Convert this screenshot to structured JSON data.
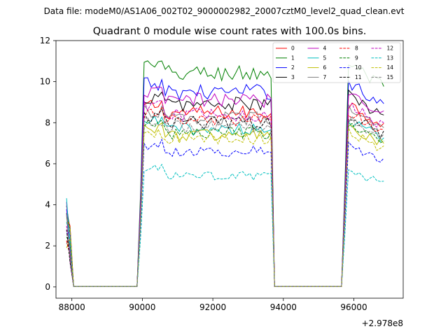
{
  "chart_data": {
    "type": "line",
    "suptitle": "Data file: modeM0/AS1A06_002T02_9000002982_20007cztM0_level2_quad_clean.evt",
    "title": "Quadrant 0 module wise count rates with 100.0s bins.",
    "xlabel": "",
    "ylabel": "",
    "x_offset_label": "+2.978e8",
    "xlim": [
      87550,
      97400
    ],
    "ylim": [
      -0.55,
      12
    ],
    "x_ticks": [
      88000,
      90000,
      92000,
      94000,
      96000
    ],
    "y_ticks": [
      0,
      2,
      4,
      6,
      8,
      10,
      12
    ],
    "grid": false,
    "legend_position": "top-right",
    "segments": [
      {
        "start": 87850,
        "end": 87950,
        "ramp_down": 88050
      },
      {
        "ramp_up": 89950,
        "start": 90050,
        "end": 93650,
        "ramp_down": 93750
      },
      {
        "ramp_up": 95750,
        "start": 95850,
        "end": 96850
      }
    ],
    "gap_x_start": 88050,
    "gap_x_end": 95650,
    "series": [
      {
        "name": "0",
        "color": "#ff0000",
        "dash": false,
        "level": 8.5
      },
      {
        "name": "1",
        "color": "#008000",
        "dash": false,
        "level": 10.4
      },
      {
        "name": "2",
        "color": "#0000ff",
        "dash": false,
        "level": 9.5
      },
      {
        "name": "3",
        "color": "#000000",
        "dash": false,
        "level": 8.9
      },
      {
        "name": "4",
        "color": "#bf00bf",
        "dash": false,
        "level": 9.1
      },
      {
        "name": "5",
        "color": "#00bfbf",
        "dash": false,
        "level": 7.7
      },
      {
        "name": "6",
        "color": "#bfbf00",
        "dash": false,
        "level": 7.4
      },
      {
        "name": "7",
        "color": "#808080",
        "dash": false,
        "level": 8.2
      },
      {
        "name": "8",
        "color": "#ff0000",
        "dash": true,
        "level": 8.1
      },
      {
        "name": "9",
        "color": "#008000",
        "dash": true,
        "level": 7.5
      },
      {
        "name": "10",
        "color": "#0000ff",
        "dash": true,
        "level": 6.6
      },
      {
        "name": "11",
        "color": "#000000",
        "dash": true,
        "level": 8.0
      },
      {
        "name": "12",
        "color": "#bf00bf",
        "dash": true,
        "level": 8.4
      },
      {
        "name": "13",
        "color": "#00bfbf",
        "dash": true,
        "level": 5.4
      },
      {
        "name": "14",
        "color": "#bfbf00",
        "dash": true,
        "level": 7.2
      },
      {
        "name": "15",
        "color": "#808080",
        "dash": true,
        "level": 7.8
      }
    ]
  }
}
